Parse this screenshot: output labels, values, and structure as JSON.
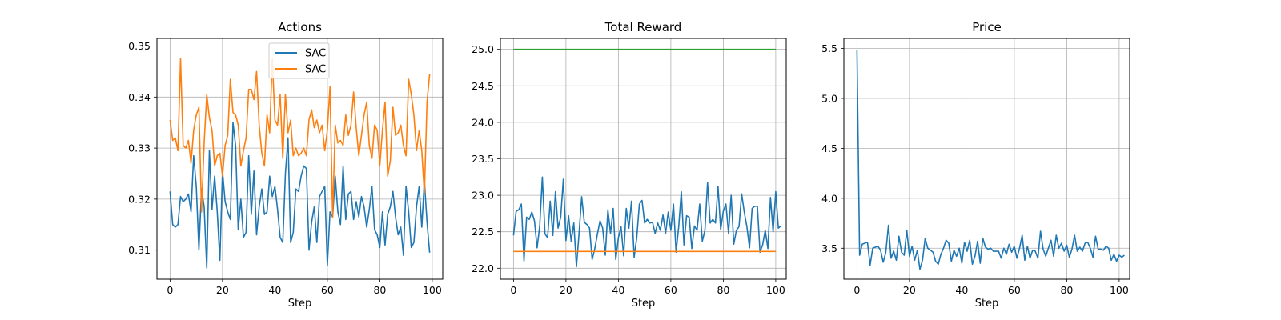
{
  "chart_data": [
    {
      "type": "line",
      "title": "Actions",
      "xlabel": "Step",
      "ylabel": "",
      "xlim": [
        -5,
        104
      ],
      "ylim": [
        0.3043,
        0.3515
      ],
      "xticks": [
        0,
        20,
        40,
        60,
        80,
        100
      ],
      "yticks": [
        0.31,
        0.32,
        0.33,
        0.34,
        0.35
      ],
      "ytick_format": 2,
      "grid": true,
      "legend": {
        "placement": "upper-center",
        "entries": [
          "SAC",
          "SAC"
        ]
      },
      "series": [
        {
          "name": "SAC",
          "color": "#1f77b4",
          "x_start": 0,
          "values": [
            0.3215,
            0.315,
            0.3145,
            0.315,
            0.3205,
            0.3195,
            0.32,
            0.321,
            0.3175,
            0.3285,
            0.3225,
            0.31,
            0.322,
            0.3185,
            0.3065,
            0.3295,
            0.318,
            0.3245,
            0.3175,
            0.308,
            0.3255,
            0.3195,
            0.3175,
            0.316,
            0.335,
            0.3305,
            0.314,
            0.32,
            0.3125,
            0.3135,
            0.3285,
            0.317,
            0.3255,
            0.313,
            0.3185,
            0.322,
            0.317,
            0.3175,
            0.3245,
            0.3205,
            0.3225,
            0.318,
            0.3125,
            0.3115,
            0.325,
            0.332,
            0.3115,
            0.3135,
            0.322,
            0.3215,
            0.3245,
            0.3265,
            0.326,
            0.31,
            0.3155,
            0.3185,
            0.3115,
            0.3205,
            0.3215,
            0.3225,
            0.307,
            0.3175,
            0.3165,
            0.3245,
            0.3175,
            0.315,
            0.3265,
            0.316,
            0.321,
            0.3215,
            0.316,
            0.3195,
            0.3165,
            0.3205,
            0.3185,
            0.3145,
            0.318,
            0.3225,
            0.314,
            0.313,
            0.3105,
            0.3175,
            0.311,
            0.317,
            0.3185,
            0.3215,
            0.3165,
            0.313,
            0.3145,
            0.309,
            0.3225,
            0.3175,
            0.3105,
            0.3115,
            0.3185,
            0.3225,
            0.3145,
            0.3235,
            0.3155,
            0.3095
          ]
        },
        {
          "name": "SAC",
          "color": "#ff7f0e",
          "x_start": 0,
          "values": [
            0.3355,
            0.3315,
            0.332,
            0.3295,
            0.3475,
            0.3305,
            0.33,
            0.3315,
            0.327,
            0.3335,
            0.3365,
            0.338,
            0.3175,
            0.331,
            0.3405,
            0.336,
            0.3335,
            0.3265,
            0.3285,
            0.329,
            0.3245,
            0.3305,
            0.3325,
            0.3435,
            0.337,
            0.3365,
            0.3345,
            0.3265,
            0.3295,
            0.332,
            0.3415,
            0.3415,
            0.3395,
            0.345,
            0.3345,
            0.329,
            0.3265,
            0.3365,
            0.333,
            0.3475,
            0.3355,
            0.3345,
            0.3405,
            0.328,
            0.3405,
            0.333,
            0.3355,
            0.3285,
            0.33,
            0.3285,
            0.329,
            0.33,
            0.3285,
            0.3355,
            0.3375,
            0.334,
            0.3355,
            0.333,
            0.3345,
            0.3295,
            0.3335,
            0.342,
            0.3165,
            0.3345,
            0.331,
            0.3315,
            0.3305,
            0.3365,
            0.3325,
            0.3345,
            0.341,
            0.334,
            0.3285,
            0.3325,
            0.3365,
            0.339,
            0.3305,
            0.328,
            0.3345,
            0.3335,
            0.3265,
            0.3335,
            0.339,
            0.3245,
            0.3275,
            0.338,
            0.3325,
            0.333,
            0.3345,
            0.3305,
            0.3285,
            0.3435,
            0.3405,
            0.3365,
            0.3295,
            0.3335,
            0.3295,
            0.321,
            0.339,
            0.3445
          ]
        }
      ]
    },
    {
      "type": "line",
      "title": "Total Reward",
      "xlabel": "Step",
      "ylabel": "",
      "xlim": [
        -5,
        104
      ],
      "ylim": [
        21.85,
        25.15
      ],
      "xticks": [
        0,
        20,
        40,
        60,
        80,
        100
      ],
      "yticks": [
        22.0,
        22.5,
        23.0,
        23.5,
        24.0,
        24.5,
        25.0
      ],
      "ytick_format": 1,
      "grid": true,
      "legend": null,
      "series": [
        {
          "name": "",
          "color": "#1f77b4",
          "x_start": 0,
          "values": [
            22.45,
            22.78,
            22.8,
            22.88,
            22.1,
            22.7,
            22.67,
            22.77,
            22.65,
            22.28,
            22.58,
            23.25,
            22.47,
            22.42,
            22.92,
            22.45,
            23.05,
            22.55,
            22.7,
            23.22,
            22.38,
            22.72,
            22.37,
            22.62,
            22.02,
            22.48,
            22.98,
            22.63,
            22.6,
            22.55,
            22.12,
            22.27,
            22.47,
            22.65,
            22.55,
            22.18,
            22.8,
            22.48,
            22.82,
            22.12,
            22.42,
            22.57,
            22.17,
            22.82,
            22.55,
            22.92,
            22.15,
            22.42,
            22.88,
            22.93,
            22.62,
            22.67,
            22.62,
            22.63,
            22.48,
            22.62,
            22.52,
            22.73,
            22.48,
            22.77,
            22.52,
            22.88,
            22.22,
            22.57,
            23.05,
            22.32,
            22.72,
            22.7,
            22.27,
            22.58,
            22.52,
            22.88,
            22.37,
            22.52,
            23.17,
            22.62,
            22.67,
            22.62,
            23.12,
            22.53,
            22.78,
            22.88,
            22.48,
            23.0,
            22.33,
            22.52,
            22.57,
            23.02,
            22.77,
            22.57,
            22.28,
            22.82,
            22.85,
            22.85,
            22.22,
            22.32,
            22.52,
            22.27,
            22.97,
            22.5,
            23.05,
            22.55,
            22.58
          ]
        },
        {
          "name": "",
          "color": "#2ca02c",
          "x": [
            0,
            100
          ],
          "values": [
            25.0,
            25.0
          ]
        },
        {
          "name": "",
          "color": "#ff7f0e",
          "x": [
            0,
            100
          ],
          "values": [
            22.23,
            22.23
          ]
        }
      ]
    },
    {
      "type": "line",
      "title": "Price",
      "xlabel": "Step",
      "ylabel": "",
      "xlim": [
        -5,
        104
      ],
      "ylim": [
        3.19,
        5.6
      ],
      "xticks": [
        0,
        20,
        40,
        60,
        80,
        100
      ],
      "yticks": [
        3.5,
        4.0,
        4.5,
        5.0,
        5.5
      ],
      "ytick_format": 1,
      "grid": true,
      "legend": null,
      "series": [
        {
          "name": "",
          "color": "#1f77b4",
          "x_start": 0,
          "values": [
            5.48,
            3.43,
            3.54,
            3.55,
            3.56,
            3.33,
            3.5,
            3.51,
            3.52,
            3.48,
            3.36,
            3.46,
            3.73,
            3.4,
            3.47,
            3.38,
            3.62,
            3.46,
            3.43,
            3.68,
            3.42,
            3.52,
            3.38,
            3.48,
            3.29,
            3.38,
            3.6,
            3.5,
            3.48,
            3.46,
            3.37,
            3.34,
            3.44,
            3.5,
            3.58,
            3.55,
            3.37,
            3.48,
            3.42,
            3.5,
            3.35,
            3.56,
            3.47,
            3.58,
            3.34,
            3.42,
            3.57,
            3.35,
            3.6,
            3.51,
            3.49,
            3.5,
            3.47,
            3.47,
            3.47,
            3.4,
            3.5,
            3.44,
            3.54,
            3.46,
            3.52,
            3.4,
            3.5,
            3.63,
            3.38,
            3.52,
            3.4,
            3.48,
            3.47,
            3.4,
            3.67,
            3.49,
            3.42,
            3.5,
            3.58,
            3.42,
            3.63,
            3.5,
            3.55,
            3.47,
            3.53,
            3.41,
            3.49,
            3.63,
            3.47,
            3.51,
            3.47,
            3.55,
            3.56,
            3.5,
            3.41,
            3.62,
            3.49,
            3.49,
            3.48,
            3.52,
            3.5,
            3.38,
            3.44,
            3.37,
            3.43,
            3.41,
            3.43
          ]
        }
      ]
    }
  ]
}
